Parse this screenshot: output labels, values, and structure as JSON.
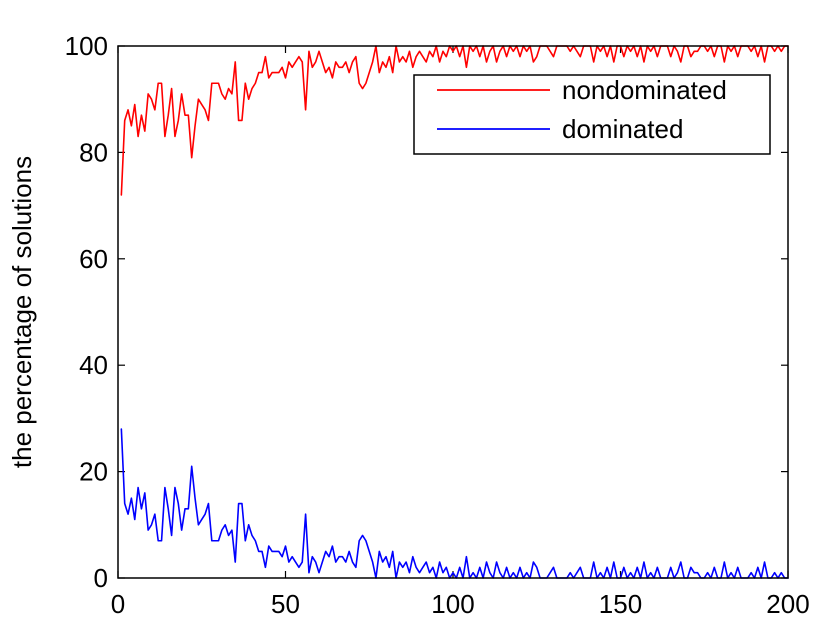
{
  "chart_data": {
    "type": "line",
    "title": "",
    "xlabel": "",
    "ylabel": "the percentage of solutions",
    "xlim": [
      0,
      200
    ],
    "ylim": [
      0,
      100
    ],
    "xticks": [
      0,
      50,
      100,
      150,
      200
    ],
    "yticks": [
      0,
      20,
      40,
      60,
      80,
      100
    ],
    "xtick_labels": [
      "0",
      "50",
      "100",
      "150",
      "200"
    ],
    "ytick_labels": [
      "0",
      "20",
      "40",
      "60",
      "80",
      "100"
    ],
    "grid": false,
    "legend": {
      "placement": "top-right"
    },
    "series": [
      {
        "name": "nondominated",
        "color": "#ff0000",
        "x": [
          1,
          2,
          3,
          4,
          5,
          6,
          7,
          8,
          9,
          10,
          11,
          12,
          13,
          14,
          15,
          16,
          17,
          18,
          19,
          20,
          21,
          22,
          23,
          24,
          25,
          26,
          27,
          28,
          29,
          30,
          31,
          32,
          33,
          34,
          35,
          36,
          37,
          38,
          39,
          40,
          41,
          42,
          43,
          44,
          45,
          46,
          47,
          48,
          49,
          50,
          51,
          52,
          53,
          54,
          55,
          56,
          57,
          58,
          59,
          60,
          61,
          62,
          63,
          64,
          65,
          66,
          67,
          68,
          69,
          70,
          71,
          72,
          73,
          74,
          75,
          76,
          77,
          78,
          79,
          80,
          81,
          82,
          83,
          84,
          85,
          86,
          87,
          88,
          89,
          90,
          91,
          92,
          93,
          94,
          95,
          96,
          97,
          98,
          99,
          100,
          101,
          102,
          103,
          104,
          105,
          106,
          107,
          108,
          109,
          110,
          111,
          112,
          113,
          114,
          115,
          116,
          117,
          118,
          119,
          120,
          121,
          122,
          123,
          124,
          125,
          126,
          127,
          128,
          129,
          130,
          131,
          132,
          133,
          134,
          135,
          136,
          137,
          138,
          139,
          140,
          141,
          142,
          143,
          144,
          145,
          146,
          147,
          148,
          149,
          150,
          151,
          152,
          153,
          154,
          155,
          156,
          157,
          158,
          159,
          160,
          161,
          162,
          163,
          164,
          165,
          166,
          167,
          168,
          169,
          170,
          171,
          172,
          173,
          174,
          175,
          176,
          177,
          178,
          179,
          180,
          181,
          182,
          183,
          184,
          185,
          186,
          187,
          188,
          189,
          190,
          191,
          192,
          193,
          194,
          195,
          196,
          197,
          198,
          199,
          200
        ],
        "y": [
          72,
          86,
          88,
          85,
          89,
          83,
          87,
          84,
          91,
          90,
          88,
          93,
          93,
          83,
          87,
          92,
          83,
          86,
          91,
          87,
          87,
          79,
          85,
          90,
          89,
          88,
          86,
          93,
          93,
          93,
          91,
          90,
          92,
          91,
          97,
          86,
          86,
          93,
          90,
          92,
          93,
          95,
          95,
          98,
          94,
          95,
          95,
          95,
          96,
          94,
          97,
          96,
          97,
          98,
          97,
          88,
          99,
          96,
          97,
          99,
          97,
          95,
          96,
          94,
          97,
          96,
          96,
          97,
          95,
          97,
          98,
          93,
          92,
          93,
          95,
          97,
          100,
          95,
          97,
          96,
          98,
          95,
          100,
          97,
          98,
          97,
          99,
          96,
          98,
          99,
          98,
          97,
          99,
          98,
          100,
          97,
          99,
          98,
          100,
          99,
          100,
          98,
          100,
          96,
          100,
          99,
          100,
          98,
          100,
          97,
          99,
          100,
          97,
          99,
          100,
          98,
          100,
          99,
          100,
          98,
          100,
          99,
          100,
          97,
          98,
          100,
          100,
          100,
          99,
          98,
          100,
          100,
          100,
          100,
          99,
          100,
          99,
          98,
          100,
          100,
          100,
          97,
          100,
          99,
          100,
          98,
          100,
          97,
          100,
          100,
          98,
          100,
          99,
          100,
          98,
          100,
          97,
          100,
          99,
          100,
          98,
          100,
          100,
          100,
          98,
          100,
          99,
          97,
          100,
          100,
          98,
          99,
          99,
          100,
          100,
          99,
          100,
          98,
          100,
          100,
          97,
          100,
          99,
          100,
          98,
          100,
          100,
          100,
          99,
          100,
          98,
          100,
          97,
          100,
          100,
          99,
          100,
          99,
          100,
          100
        ]
      },
      {
        "name": "dominated",
        "color": "#0000ff",
        "x": [
          1,
          2,
          3,
          4,
          5,
          6,
          7,
          8,
          9,
          10,
          11,
          12,
          13,
          14,
          15,
          16,
          17,
          18,
          19,
          20,
          21,
          22,
          23,
          24,
          25,
          26,
          27,
          28,
          29,
          30,
          31,
          32,
          33,
          34,
          35,
          36,
          37,
          38,
          39,
          40,
          41,
          42,
          43,
          44,
          45,
          46,
          47,
          48,
          49,
          50,
          51,
          52,
          53,
          54,
          55,
          56,
          57,
          58,
          59,
          60,
          61,
          62,
          63,
          64,
          65,
          66,
          67,
          68,
          69,
          70,
          71,
          72,
          73,
          74,
          75,
          76,
          77,
          78,
          79,
          80,
          81,
          82,
          83,
          84,
          85,
          86,
          87,
          88,
          89,
          90,
          91,
          92,
          93,
          94,
          95,
          96,
          97,
          98,
          99,
          100,
          101,
          102,
          103,
          104,
          105,
          106,
          107,
          108,
          109,
          110,
          111,
          112,
          113,
          114,
          115,
          116,
          117,
          118,
          119,
          120,
          121,
          122,
          123,
          124,
          125,
          126,
          127,
          128,
          129,
          130,
          131,
          132,
          133,
          134,
          135,
          136,
          137,
          138,
          139,
          140,
          141,
          142,
          143,
          144,
          145,
          146,
          147,
          148,
          149,
          150,
          151,
          152,
          153,
          154,
          155,
          156,
          157,
          158,
          159,
          160,
          161,
          162,
          163,
          164,
          165,
          166,
          167,
          168,
          169,
          170,
          171,
          172,
          173,
          174,
          175,
          176,
          177,
          178,
          179,
          180,
          181,
          182,
          183,
          184,
          185,
          186,
          187,
          188,
          189,
          190,
          191,
          192,
          193,
          194,
          195,
          196,
          197,
          198,
          199,
          200
        ],
        "y": [
          28,
          14,
          12,
          15,
          11,
          17,
          13,
          16,
          9,
          10,
          12,
          7,
          7,
          17,
          13,
          8,
          17,
          14,
          9,
          13,
          13,
          21,
          15,
          10,
          11,
          12,
          14,
          7,
          7,
          7,
          9,
          10,
          8,
          9,
          3,
          14,
          14,
          7,
          10,
          8,
          7,
          5,
          5,
          2,
          6,
          5,
          5,
          5,
          4,
          6,
          3,
          4,
          3,
          2,
          3,
          12,
          1,
          4,
          3,
          1,
          3,
          5,
          4,
          6,
          3,
          4,
          4,
          3,
          5,
          3,
          2,
          7,
          8,
          7,
          5,
          3,
          0,
          5,
          3,
          4,
          2,
          5,
          0,
          3,
          2,
          3,
          1,
          4,
          2,
          1,
          2,
          3,
          1,
          2,
          0,
          3,
          1,
          2,
          0,
          1,
          0,
          2,
          0,
          4,
          0,
          1,
          0,
          2,
          0,
          3,
          1,
          0,
          3,
          1,
          0,
          2,
          0,
          1,
          0,
          2,
          0,
          1,
          0,
          3,
          2,
          0,
          0,
          0,
          1,
          2,
          0,
          0,
          0,
          0,
          1,
          0,
          1,
          2,
          0,
          0,
          0,
          3,
          0,
          1,
          0,
          2,
          0,
          3,
          0,
          0,
          2,
          0,
          1,
          0,
          2,
          0,
          3,
          0,
          1,
          0,
          2,
          0,
          0,
          0,
          2,
          0,
          1,
          3,
          0,
          0,
          2,
          1,
          1,
          0,
          0,
          1,
          0,
          2,
          0,
          0,
          3,
          0,
          1,
          0,
          2,
          0,
          0,
          0,
          1,
          0,
          2,
          0,
          3,
          0,
          0,
          1,
          0,
          1,
          0,
          0
        ]
      }
    ]
  }
}
